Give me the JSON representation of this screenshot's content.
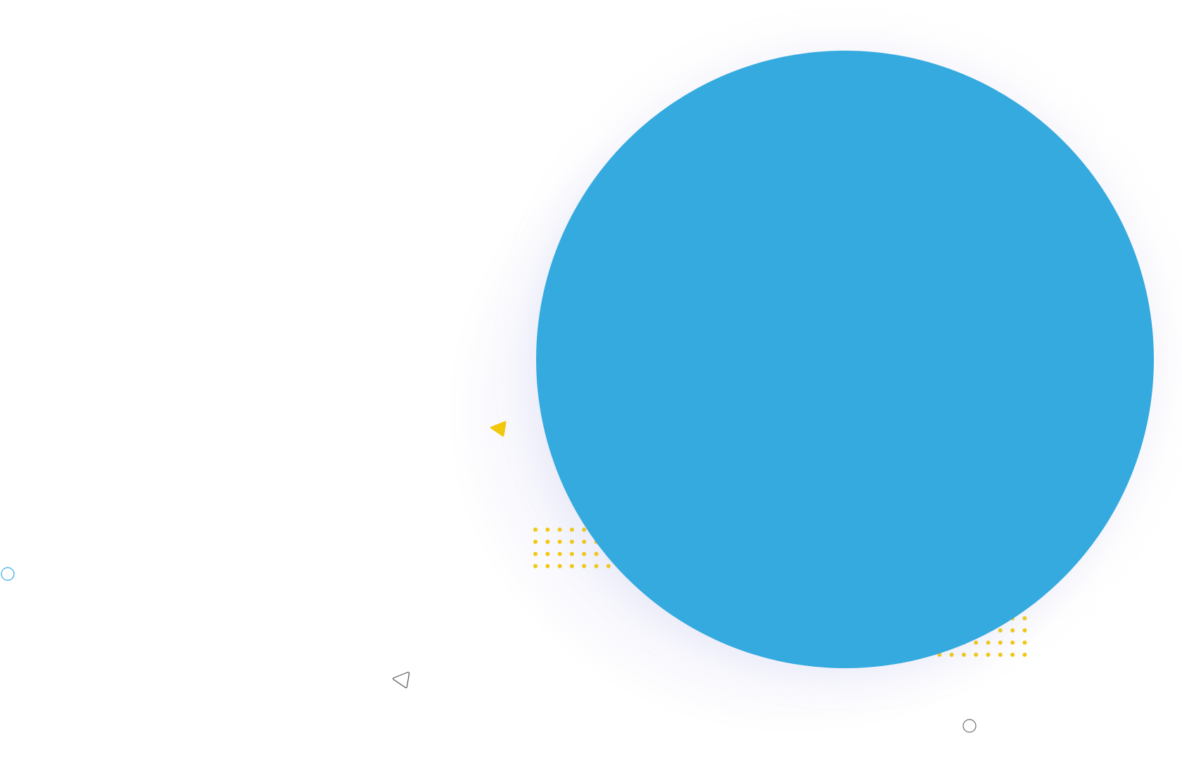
{
  "colors": {
    "background": "#ffffff",
    "main_circle": "#34aadf",
    "dot_yellow": "#f2c80f",
    "ring_blue": "#34aadf",
    "ring_grey": "#6b6b6b",
    "triangle_yellow": "#f2c80f",
    "triangle_outline": "#555555",
    "glow": "#c8c8f0"
  },
  "decorations": {
    "main_shape": "large-blue-circle",
    "dot_patterns": [
      "yellow-dot-grid-left",
      "yellow-dot-grid-right"
    ],
    "icons": [
      "blue-ring-icon",
      "grey-ring-icon",
      "yellow-triangle-icon",
      "outline-triangle-icon"
    ]
  }
}
